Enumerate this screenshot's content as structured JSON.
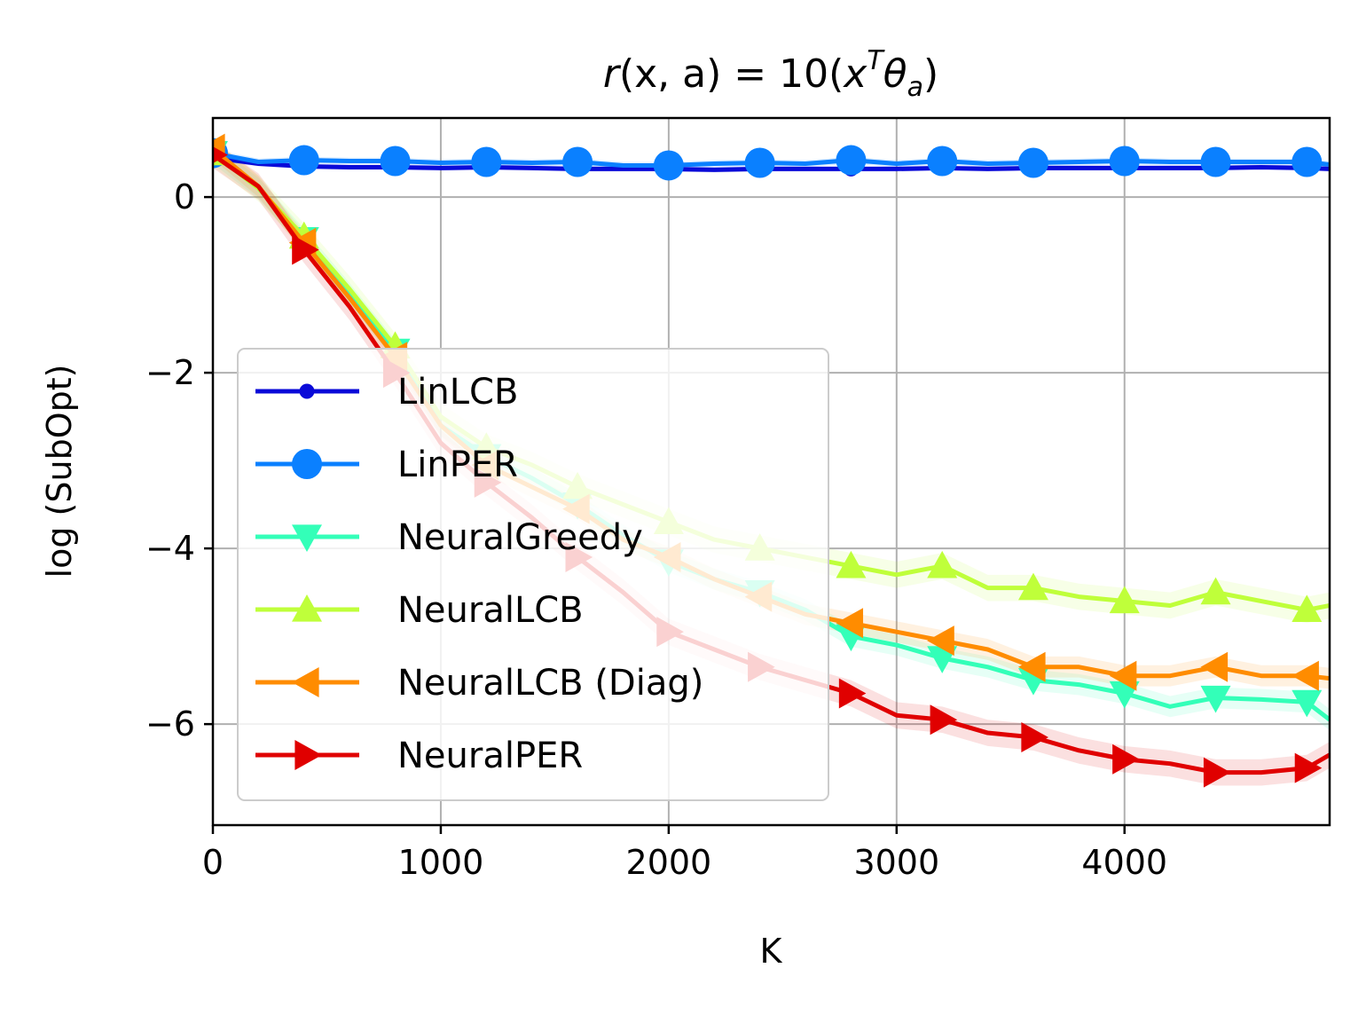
{
  "chart_data": {
    "type": "line",
    "title": "r(x, a) = 10(xᵀθₐ)",
    "title_parts": {
      "r": "r",
      "args": "(x, a)",
      "equals": " = 10(",
      "x": "x",
      "sup": "T",
      "theta": "θ",
      "sub": "a",
      "close": ")"
    },
    "xlabel": "K",
    "ylabel": "log (SubOpt)",
    "xlim": [
      0,
      4900
    ],
    "ylim": [
      -7.15,
      0.9
    ],
    "xticks": [
      0,
      1000,
      2000,
      3000,
      4000
    ],
    "xtick_labels": [
      "0",
      "1000",
      "2000",
      "3000",
      "4000"
    ],
    "yticks": [
      0,
      -2,
      -4,
      -6
    ],
    "ytick_labels": [
      "0",
      "−2",
      "−4",
      "−6"
    ],
    "grid": true,
    "legend_position": "lower-left",
    "x": [
      0,
      200,
      400,
      600,
      800,
      1000,
      1200,
      1400,
      1600,
      1800,
      2000,
      2200,
      2400,
      2600,
      2800,
      3000,
      3200,
      3400,
      3600,
      3800,
      4000,
      4200,
      4400,
      4600,
      4800,
      4900
    ],
    "series": [
      {
        "name": "LinLCB",
        "color": "#0a0ad8",
        "marker": "dot",
        "marker_every": 2,
        "band": 0.03,
        "values": [
          0.45,
          0.38,
          0.35,
          0.34,
          0.34,
          0.33,
          0.34,
          0.33,
          0.32,
          0.32,
          0.32,
          0.31,
          0.32,
          0.32,
          0.32,
          0.32,
          0.33,
          0.32,
          0.33,
          0.33,
          0.33,
          0.33,
          0.33,
          0.34,
          0.33,
          0.32
        ]
      },
      {
        "name": "LinPER",
        "color": "#0a80ff",
        "marker": "circle",
        "marker_every": 2,
        "band": 0.04,
        "values": [
          0.5,
          0.4,
          0.42,
          0.41,
          0.41,
          0.39,
          0.4,
          0.39,
          0.4,
          0.36,
          0.36,
          0.38,
          0.39,
          0.38,
          0.42,
          0.38,
          0.41,
          0.38,
          0.39,
          0.4,
          0.41,
          0.4,
          0.4,
          0.4,
          0.4,
          0.37
        ]
      },
      {
        "name": "NeuralGreedy",
        "color": "#33ffb8",
        "marker": "triangle-down",
        "marker_every": 2,
        "band": 0.12,
        "values": [
          0.5,
          0.1,
          -0.48,
          -1.1,
          -1.75,
          -2.6,
          -2.95,
          -3.2,
          -3.5,
          -3.85,
          -4.15,
          -4.35,
          -4.5,
          -4.7,
          -5.0,
          -5.1,
          -5.25,
          -5.35,
          -5.5,
          -5.55,
          -5.65,
          -5.8,
          -5.7,
          -5.72,
          -5.75,
          -5.95
        ]
      },
      {
        "name": "NeuralLCB",
        "color": "#bfff3a",
        "marker": "triangle-up",
        "marker_every": 2,
        "band": 0.15,
        "values": [
          0.5,
          0.1,
          -0.45,
          -1.05,
          -1.7,
          -2.5,
          -2.85,
          -3.05,
          -3.3,
          -3.5,
          -3.7,
          -3.9,
          -4.0,
          -4.1,
          -4.2,
          -4.3,
          -4.2,
          -4.45,
          -4.45,
          -4.55,
          -4.6,
          -4.65,
          -4.5,
          -4.6,
          -4.7,
          -4.65
        ]
      },
      {
        "name": "NeuralLCB (Diag)",
        "color": "#ff8c00",
        "marker": "triangle-left",
        "marker_every": 2,
        "band": 0.12,
        "values": [
          0.55,
          0.12,
          -0.52,
          -1.15,
          -1.82,
          -2.6,
          -3.05,
          -3.3,
          -3.55,
          -3.9,
          -4.1,
          -4.35,
          -4.55,
          -4.75,
          -4.85,
          -4.95,
          -5.05,
          -5.15,
          -5.35,
          -5.35,
          -5.45,
          -5.45,
          -5.35,
          -5.45,
          -5.45,
          -5.48
        ]
      },
      {
        "name": "NeuralPER",
        "color": "#e00000",
        "marker": "triangle-right",
        "marker_every": 2,
        "band": 0.15,
        "values": [
          0.48,
          0.12,
          -0.6,
          -1.25,
          -2.0,
          -2.8,
          -3.25,
          -3.65,
          -4.1,
          -4.5,
          -4.95,
          -5.15,
          -5.35,
          -5.5,
          -5.65,
          -5.9,
          -5.95,
          -6.1,
          -6.15,
          -6.3,
          -6.4,
          -6.45,
          -6.55,
          -6.55,
          -6.5,
          -6.35
        ]
      }
    ]
  }
}
